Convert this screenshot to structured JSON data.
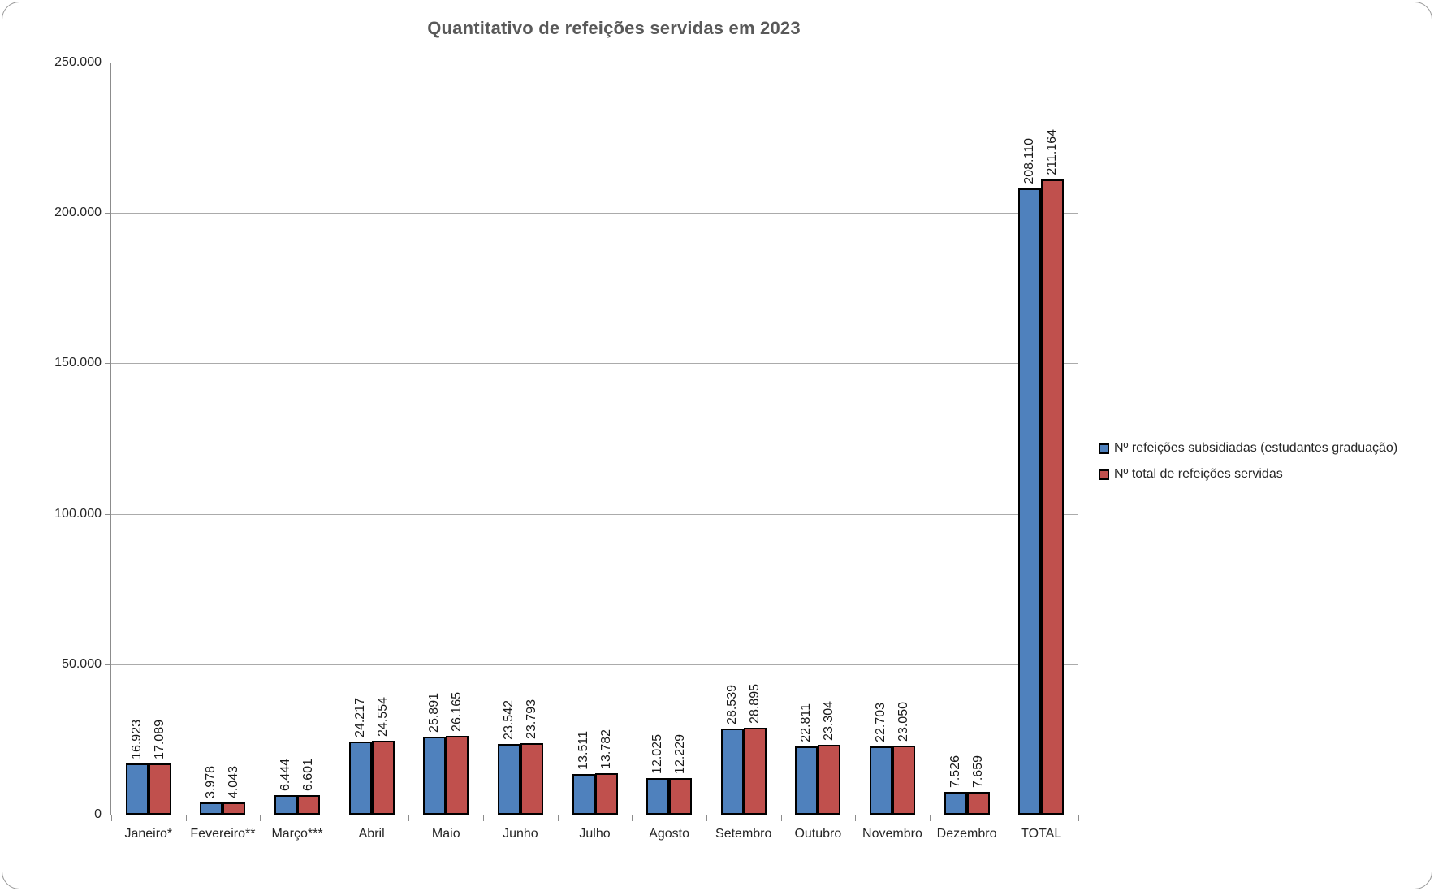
{
  "chart_data": {
    "type": "bar",
    "title": "Quantitativo de refeições servidas em 2023",
    "categories": [
      "Janeiro*",
      "Fevereiro**",
      "Março***",
      "Abril",
      "Maio",
      "Junho",
      "Julho",
      "Agosto",
      "Setembro",
      "Outubro",
      "Novembro",
      "Dezembro",
      "TOTAL"
    ],
    "series": [
      {
        "name": "Nº refeições subsidiadas (estudantes graduação)",
        "color": "#4F81BD",
        "values": [
          16923,
          3978,
          6444,
          24217,
          25891,
          23542,
          13511,
          12025,
          28539,
          22811,
          22703,
          7526,
          208110
        ],
        "labels": [
          "16.923",
          "3.978",
          "6.444",
          "24.217",
          "25.891",
          "23.542",
          "13.511",
          "12.025",
          "28.539",
          "22.811",
          "22.703",
          "7.526",
          "208.110"
        ]
      },
      {
        "name": "Nº total de refeições servidas",
        "color": "#C0504D",
        "values": [
          17089,
          4043,
          6601,
          24554,
          26165,
          23793,
          13782,
          12229,
          28895,
          23304,
          23050,
          7659,
          211164
        ],
        "labels": [
          "17.089",
          "4.043",
          "6.601",
          "24.554",
          "26.165",
          "23.793",
          "13.782",
          "12.229",
          "28.895",
          "23.304",
          "23.050",
          "7.659",
          "211.164"
        ]
      }
    ],
    "ylim": [
      0,
      250000
    ],
    "ytick_step": 50000,
    "ytick_labels": [
      "0",
      "50.000",
      "100.000",
      "150.000",
      "200.000",
      "250.000"
    ],
    "grid": true,
    "legend_position": "right",
    "bar_border_color": "#000000",
    "title_color": "#595959"
  }
}
